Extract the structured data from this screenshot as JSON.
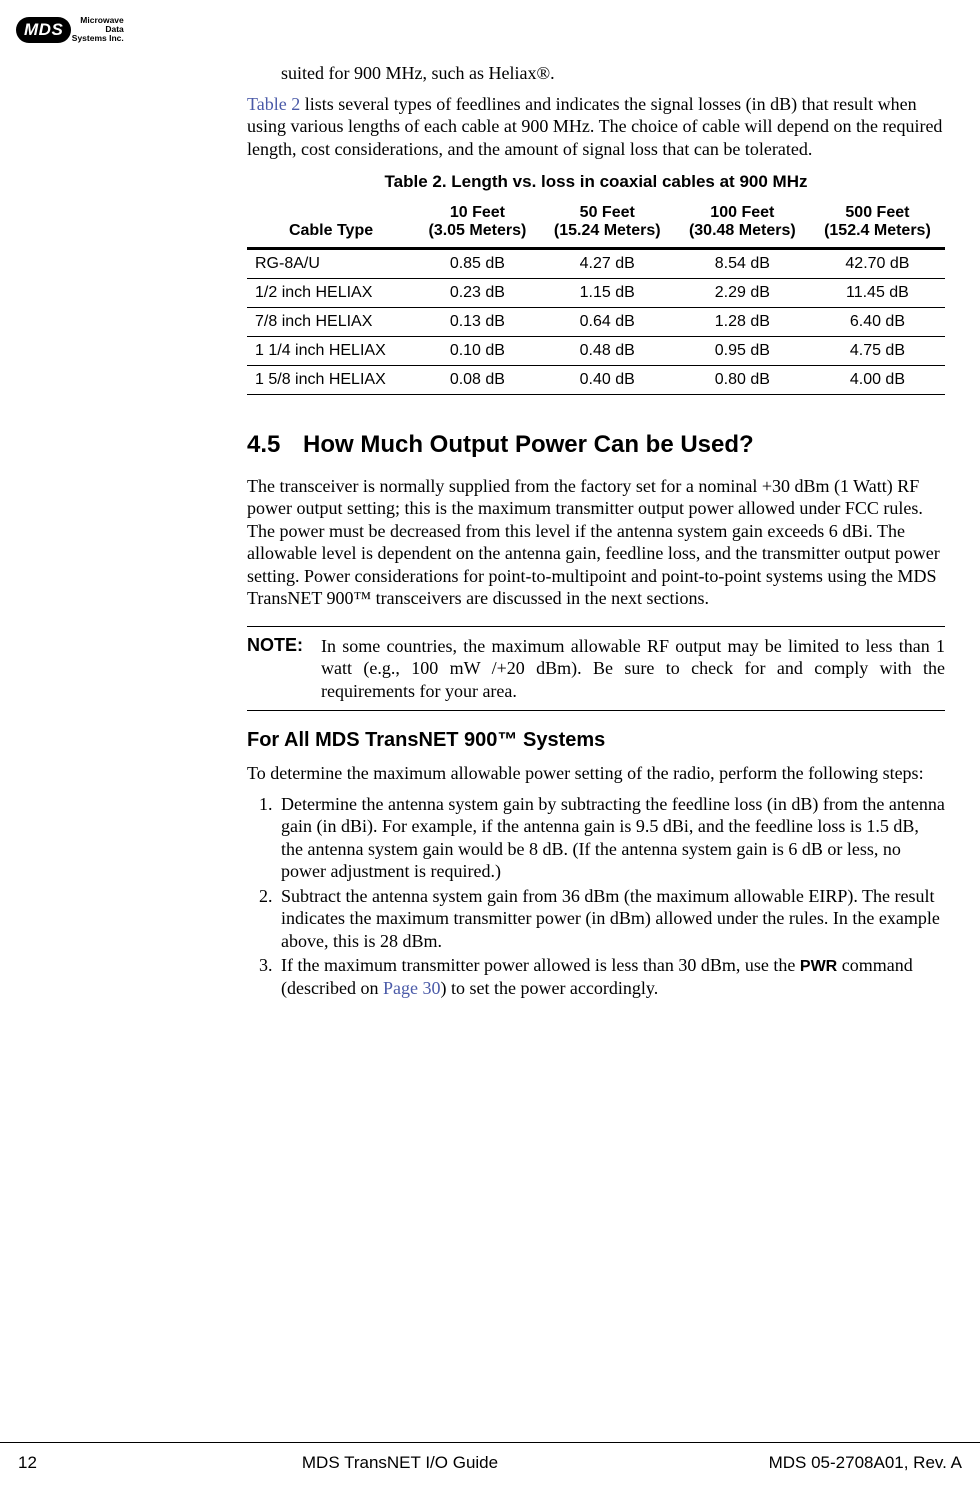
{
  "logo": {
    "tag": "MDS",
    "line1": "Microwave",
    "line2": "Data",
    "line3": "Systems Inc."
  },
  "intro_tail": "suited for 900 MHz, such as Heliax®.",
  "para_table_ref_link": "Table 2",
  "para_table_ref_rest": " lists several types of feedlines and indicates the signal losses (in dB) that result when using various lengths of each cable at 900 MHz. The choice of cable will depend on the required length, cost considerations, and the amount of signal loss that can be tolerated.",
  "table": {
    "caption": "Table 2. Length vs. loss in coaxial cables at 900 MHz",
    "columns": [
      {
        "top": "Cable Type",
        "sub": ""
      },
      {
        "top": "10 Feet",
        "sub": "(3.05 Meters)"
      },
      {
        "top": "50 Feet",
        "sub": "(15.24 Meters)"
      },
      {
        "top": "100 Feet",
        "sub": "(30.48 Meters)"
      },
      {
        "top": "500 Feet",
        "sub": "(152.4 Meters)"
      }
    ],
    "rows": [
      [
        "RG-8A/U",
        "0.85 dB",
        "4.27 dB",
        "8.54 dB",
        "42.70 dB"
      ],
      [
        "1/2 inch HELIAX",
        "0.23 dB",
        "1.15 dB",
        "2.29 dB",
        "11.45 dB"
      ],
      [
        "7/8 inch HELIAX",
        "0.13 dB",
        "0.64 dB",
        "1.28 dB",
        "6.40 dB"
      ],
      [
        "1 1/4 inch HELIAX",
        "0.10 dB",
        "0.48 dB",
        "0.95 dB",
        "4.75 dB"
      ],
      [
        "1 5/8 inch HELIAX",
        "0.08 dB",
        "0.40 dB",
        "0.80 dB",
        "4.00 dB"
      ]
    ]
  },
  "section": {
    "num": "4.5",
    "title": "How Much Output Power Can be Used?"
  },
  "power_para": "The transceiver is normally supplied from the factory set for a nominal +30 dBm (1 Watt) RF power output setting; this is the maximum transmitter output power allowed under FCC rules. The power must be decreased from this level if the antenna system gain exceeds 6 dBi. The allowable level is dependent on the antenna gain, feedline loss, and the transmitter output power setting. Power considerations for point-to-multipoint and point-to-point systems using the MDS TransNET 900™ transceivers are discussed in the next sections.",
  "note": {
    "label": "NOTE:",
    "body": "In some countries, the maximum allowable RF output may be limited to less than 1 watt (e.g., 100 mW /+20 dBm). Be sure to check for and comply with the requirements for your area."
  },
  "subhead": "For All MDS TransNET 900™ Systems",
  "steps_intro": "To determine the maximum allowable power setting of the radio, perform the following steps:",
  "steps": [
    "Determine the antenna system gain by subtracting the feedline loss (in dB) from the antenna gain (in dBi). For example, if the antenna gain is 9.5 dBi, and the feedline loss is 1.5 dB, the antenna system gain would be 8 dB. (If the antenna system gain is 6 dB or less, no power adjustment is required.)",
    "Subtract the antenna system gain from 36 dBm (the maximum allowable EIRP). The result indicates the maximum transmitter power (in dBm) allowed under the rules. In the example above, this is 28 dBm."
  ],
  "step3": {
    "pre": "If the maximum transmitter power allowed is less than 30 dBm, use the ",
    "cmd": "PWR",
    "mid": " command (described on ",
    "link": "Page 30",
    "post": ") to set the power accordingly."
  },
  "footer": {
    "page": "12",
    "center": "MDS TransNET I/O Guide",
    "right": "MDS 05-2708A01, Rev. A"
  }
}
